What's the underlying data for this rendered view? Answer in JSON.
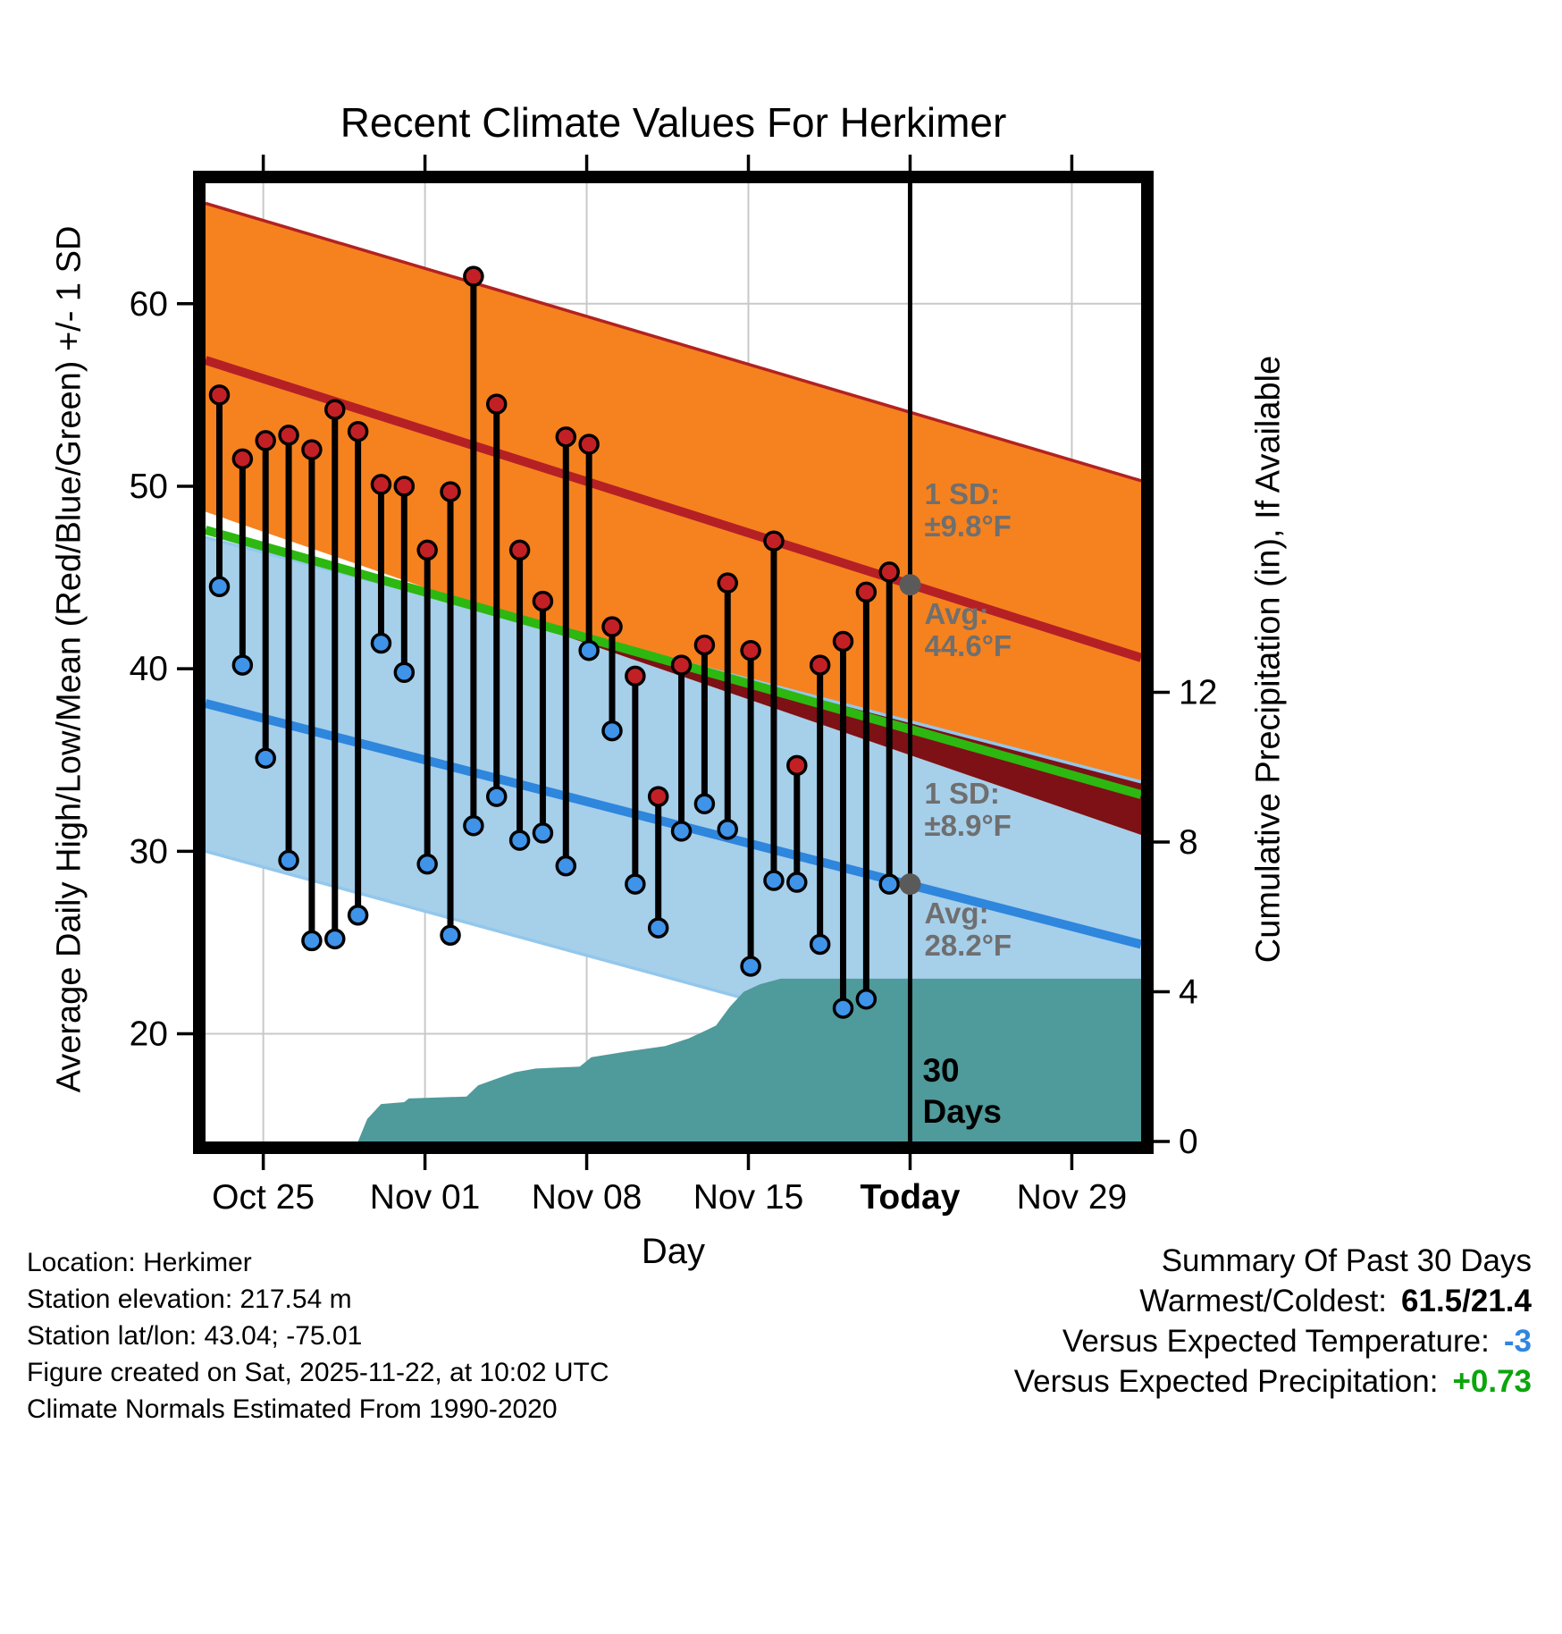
{
  "title": "Recent Climate Values For Herkimer",
  "footer": {
    "lines": [
      "Location: Herkimer",
      "Station elevation: 217.54 m",
      "Station lat/lon: 43.04; -75.01",
      "Figure created on Sat, 2025-11-22, at 10:02 UTC",
      "Climate Normals Estimated From 1990-2020"
    ]
  },
  "summary": {
    "title": "Summary Of Past 30 Days",
    "rows": [
      {
        "label": "Warmest/Coldest:",
        "value": "61.5/21.4",
        "color": "#000000"
      },
      {
        "label": "Versus Expected Temperature:",
        "value": "-3",
        "color": "#2e86e0"
      },
      {
        "label": "Versus Expected Precipitation:",
        "value": "+0.73",
        "color": "#0ca50c"
      }
    ]
  },
  "chart_data": {
    "type": "area",
    "title": "Recent Climate Values For Herkimer",
    "xlabel": "Day",
    "ylabel_left": "Average Daily High/Low/Mean (Red/Blue/Green) +/- 1 SD",
    "ylabel_right": "Cumulative Precipitation (in), If Available",
    "x_days_range": [
      0,
      40.5
    ],
    "x_ticks": [
      {
        "day": 2.5,
        "label": "Oct 25",
        "bold": false
      },
      {
        "day": 9.5,
        "label": "Nov 01",
        "bold": false
      },
      {
        "day": 16.5,
        "label": "Nov 08",
        "bold": false
      },
      {
        "day": 23.5,
        "label": "Nov 15",
        "bold": false
      },
      {
        "day": 30.5,
        "label": "Today",
        "bold": true
      },
      {
        "day": 37.5,
        "label": "Nov 29",
        "bold": false
      }
    ],
    "y_left": {
      "range": [
        14.1,
        66.6
      ],
      "ticks": [
        20,
        30,
        40,
        50,
        60
      ]
    },
    "y_right": {
      "range": [
        0,
        25.6
      ],
      "ticks": [
        0,
        4,
        8,
        12
      ]
    },
    "normals": {
      "high_plus_sd": {
        "start": 65.5,
        "end": 50.3
      },
      "high_avg": {
        "start": 56.9,
        "end": 40.6
      },
      "high_minus_sd": {
        "start": 48.6,
        "end": 30.9
      },
      "mean_avg": {
        "start": 47.6,
        "end": 33.1
      },
      "low_plus_sd": {
        "start": 47.2,
        "end": 33.8
      },
      "low_avg": {
        "start": 38.1,
        "end": 24.9
      },
      "low_minus_sd": {
        "start": 30.0,
        "end": 16.0
      }
    },
    "daily": [
      {
        "date": "Oct 23",
        "day": 0.6,
        "high": 55.0,
        "low": 44.5
      },
      {
        "date": "Oct 24",
        "day": 1.6,
        "high": 51.5,
        "low": 40.2
      },
      {
        "date": "Oct 25",
        "day": 2.6,
        "high": 52.5,
        "low": 35.1
      },
      {
        "date": "Oct 26",
        "day": 3.6,
        "high": 52.8,
        "low": 29.5
      },
      {
        "date": "Oct 27",
        "day": 4.6,
        "high": 52.0,
        "low": 25.1
      },
      {
        "date": "Oct 28",
        "day": 5.6,
        "high": 54.2,
        "low": 25.2
      },
      {
        "date": "Oct 29",
        "day": 6.6,
        "high": 53.0,
        "low": 26.5
      },
      {
        "date": "Oct 30",
        "day": 7.6,
        "high": 50.1,
        "low": 41.4
      },
      {
        "date": "Oct 31",
        "day": 8.6,
        "high": 50.0,
        "low": 39.8
      },
      {
        "date": "Nov 01",
        "day": 9.6,
        "high": 46.5,
        "low": 29.3
      },
      {
        "date": "Nov 02",
        "day": 10.6,
        "high": 49.7,
        "low": 25.4
      },
      {
        "date": "Nov 03",
        "day": 11.6,
        "high": 61.5,
        "low": 31.4
      },
      {
        "date": "Nov 04",
        "day": 12.6,
        "high": 54.5,
        "low": 33.0
      },
      {
        "date": "Nov 05",
        "day": 13.6,
        "high": 46.5,
        "low": 30.6
      },
      {
        "date": "Nov 06",
        "day": 14.6,
        "high": 43.7,
        "low": 31.0
      },
      {
        "date": "Nov 07",
        "day": 15.6,
        "high": 52.7,
        "low": 29.2
      },
      {
        "date": "Nov 08",
        "day": 16.6,
        "high": 52.3,
        "low": 41.0
      },
      {
        "date": "Nov 09",
        "day": 17.6,
        "high": 42.3,
        "low": 36.6
      },
      {
        "date": "Nov 10",
        "day": 18.6,
        "high": 39.6,
        "low": 28.2
      },
      {
        "date": "Nov 11",
        "day": 19.6,
        "high": 33.0,
        "low": 25.8
      },
      {
        "date": "Nov 12",
        "day": 20.6,
        "high": 40.2,
        "low": 31.1
      },
      {
        "date": "Nov 13",
        "day": 21.6,
        "high": 41.3,
        "low": 32.6
      },
      {
        "date": "Nov 14",
        "day": 22.6,
        "high": 44.7,
        "low": 31.2
      },
      {
        "date": "Nov 15",
        "day": 23.6,
        "high": 41.0,
        "low": 23.7
      },
      {
        "date": "Nov 16",
        "day": 24.6,
        "high": 47.0,
        "low": 28.4
      },
      {
        "date": "Nov 17",
        "day": 25.6,
        "high": 34.7,
        "low": 28.3
      },
      {
        "date": "Nov 18",
        "day": 26.6,
        "high": 40.2,
        "low": 24.9
      },
      {
        "date": "Nov 19",
        "day": 27.6,
        "high": 41.5,
        "low": 21.4
      },
      {
        "date": "Nov 20",
        "day": 28.6,
        "high": 44.2,
        "low": 21.9
      },
      {
        "date": "Nov 21",
        "day": 29.6,
        "high": 45.3,
        "low": 28.2
      }
    ],
    "precip_cumulative": [
      {
        "day": 6.6,
        "in": 0.0
      },
      {
        "day": 7.0,
        "in": 0.6
      },
      {
        "day": 7.6,
        "in": 1.0
      },
      {
        "day": 8.6,
        "in": 1.05
      },
      {
        "day": 8.8,
        "in": 1.15
      },
      {
        "day": 11.3,
        "in": 1.2
      },
      {
        "day": 11.8,
        "in": 1.5
      },
      {
        "day": 12.7,
        "in": 1.7
      },
      {
        "day": 13.4,
        "in": 1.85
      },
      {
        "day": 14.3,
        "in": 1.95
      },
      {
        "day": 16.2,
        "in": 2.0
      },
      {
        "day": 16.7,
        "in": 2.25
      },
      {
        "day": 18.2,
        "in": 2.4
      },
      {
        "day": 19.9,
        "in": 2.55
      },
      {
        "day": 20.9,
        "in": 2.75
      },
      {
        "day": 21.6,
        "in": 2.95
      },
      {
        "day": 22.1,
        "in": 3.1
      },
      {
        "day": 22.7,
        "in": 3.6
      },
      {
        "day": 23.3,
        "in": 4.0
      },
      {
        "day": 24.0,
        "in": 4.2
      },
      {
        "day": 24.9,
        "in": 4.35
      },
      {
        "day": 40.5,
        "in": 4.35
      }
    ],
    "today_day": 30.5,
    "annotations": {
      "high_sd_label": [
        "1 SD:",
        "±9.8°F"
      ],
      "high_avg_label": [
        "Avg:",
        "44.6°F"
      ],
      "low_sd_label": [
        "1 SD:",
        "±8.9°F"
      ],
      "low_avg_label": [
        "Avg:",
        "28.2°F"
      ],
      "days_label": [
        "30",
        "Days"
      ],
      "high_marker_value": 44.6,
      "low_marker_value": 28.2
    },
    "colors": {
      "orange_band": "#f5821f",
      "high_edge": "#b22222",
      "high_avg": "#b52025",
      "overlap": "#7d1116",
      "blue_band": "#a6cfea",
      "blue_edge": "#93c7ec",
      "low_avg": "#2e86dd",
      "low_dot": "#3f93e8",
      "high_dot": "#c32026",
      "mean_line": "#2cb810",
      "precip": "#4f9a9b",
      "grid": "#c9c9c9",
      "annotation": "#6f6f6f",
      "marker": "#5a5a5a",
      "today_line": "#000000"
    }
  }
}
